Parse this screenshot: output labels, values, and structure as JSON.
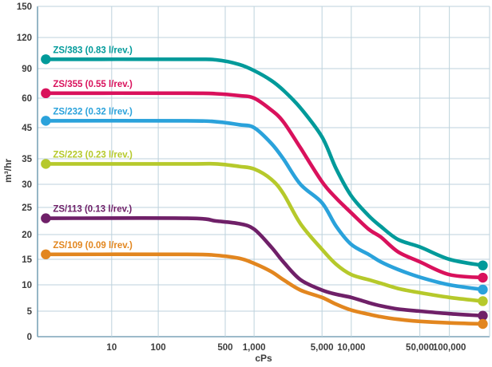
{
  "chart_data": {
    "type": "line",
    "title": "",
    "xlabel": "cPs",
    "ylabel": "m³/hr",
    "x_scale": "log-custom",
    "x_ticks": [
      {
        "value": 10,
        "label": "10"
      },
      {
        "value": 100,
        "label": "100"
      },
      {
        "value": 500,
        "label": "500"
      },
      {
        "value": 1000,
        "label": "1,000"
      },
      {
        "value": 5000,
        "label": "5,000"
      },
      {
        "value": 10000,
        "label": "10,000"
      },
      {
        "value": 50000,
        "label": "50,000"
      },
      {
        "value": 100000,
        "label": "100,000"
      }
    ],
    "y_ticks": [
      0,
      5,
      10,
      15,
      20,
      25,
      30,
      35,
      45,
      60,
      90,
      120,
      150
    ],
    "ylim": [
      0,
      150
    ],
    "x_range": [
      1,
      220000
    ],
    "grid": true,
    "legend_position": "inline-labels-above-curves",
    "series": [
      {
        "name": "ZS/383 (0.83 l/rev.)",
        "color": "#009a9a",
        "points": [
          [
            1.2,
            99
          ],
          [
            200,
            99
          ],
          [
            400,
            98.5
          ],
          [
            700,
            94
          ],
          [
            1000,
            88
          ],
          [
            1500,
            78
          ],
          [
            2000,
            68
          ],
          [
            3000,
            55
          ],
          [
            5000,
            42
          ],
          [
            7000,
            33
          ],
          [
            10000,
            27.5
          ],
          [
            15000,
            23.5
          ],
          [
            20000,
            21.5
          ],
          [
            30000,
            19
          ],
          [
            50000,
            17.5
          ],
          [
            100000,
            15
          ],
          [
            220000,
            13.8
          ]
        ]
      },
      {
        "name": "ZS/355 (0.55 l/rev.)",
        "color": "#d9115c",
        "points": [
          [
            1.2,
            65
          ],
          [
            200,
            65
          ],
          [
            400,
            64.5
          ],
          [
            700,
            62.5
          ],
          [
            1000,
            60
          ],
          [
            1500,
            54
          ],
          [
            2000,
            48
          ],
          [
            3000,
            38.5
          ],
          [
            5000,
            30.5
          ],
          [
            7000,
            27
          ],
          [
            10000,
            24
          ],
          [
            15000,
            21
          ],
          [
            20000,
            19.5
          ],
          [
            30000,
            16.5
          ],
          [
            50000,
            14.5
          ],
          [
            100000,
            12
          ],
          [
            220000,
            11.4
          ]
        ]
      },
      {
        "name": "ZS/232 (0.32 l/rev.)",
        "color": "#2aa2db",
        "points": [
          [
            1.2,
            48.5
          ],
          [
            200,
            48.5
          ],
          [
            400,
            48
          ],
          [
            700,
            46.5
          ],
          [
            1000,
            45
          ],
          [
            1500,
            40
          ],
          [
            2000,
            35
          ],
          [
            3000,
            30
          ],
          [
            5000,
            26
          ],
          [
            7000,
            21.5
          ],
          [
            10000,
            18
          ],
          [
            15000,
            16
          ],
          [
            20000,
            14.5
          ],
          [
            30000,
            13
          ],
          [
            50000,
            11.5
          ],
          [
            100000,
            10
          ],
          [
            220000,
            9.1
          ]
        ]
      },
      {
        "name": "ZS/223 (0.23 l/rev.)",
        "color": "#b6c92b",
        "points": [
          [
            1.2,
            34
          ],
          [
            200,
            34
          ],
          [
            400,
            34
          ],
          [
            700,
            33.5
          ],
          [
            1000,
            33
          ],
          [
            1500,
            31
          ],
          [
            2000,
            28
          ],
          [
            3000,
            22
          ],
          [
            5000,
            17
          ],
          [
            7000,
            14
          ],
          [
            10000,
            12
          ],
          [
            15000,
            11
          ],
          [
            20000,
            10.3
          ],
          [
            30000,
            9.3
          ],
          [
            50000,
            8.5
          ],
          [
            100000,
            7.6
          ],
          [
            220000,
            6.9
          ]
        ]
      },
      {
        "name": "ZS/113 (0.13 l/rev.)",
        "color": "#6f2068",
        "points": [
          [
            1.2,
            23
          ],
          [
            200,
            23
          ],
          [
            400,
            22.5
          ],
          [
            700,
            22
          ],
          [
            1000,
            21
          ],
          [
            1500,
            17.5
          ],
          [
            2000,
            14.5
          ],
          [
            3000,
            11
          ],
          [
            5000,
            9
          ],
          [
            7000,
            8.2
          ],
          [
            10000,
            7.6
          ],
          [
            15000,
            6.6
          ],
          [
            20000,
            6
          ],
          [
            30000,
            5.4
          ],
          [
            50000,
            5
          ],
          [
            100000,
            4.5
          ],
          [
            220000,
            4.1
          ]
        ]
      },
      {
        "name": "ZS/109 (0.09 l/rev.)",
        "color": "#e2861f",
        "points": [
          [
            1.2,
            16
          ],
          [
            200,
            16
          ],
          [
            400,
            15.8
          ],
          [
            700,
            15.2
          ],
          [
            1000,
            14.2
          ],
          [
            1500,
            12.6
          ],
          [
            2000,
            11
          ],
          [
            3000,
            9
          ],
          [
            5000,
            7.6
          ],
          [
            7000,
            6.3
          ],
          [
            10000,
            5.2
          ],
          [
            15000,
            4.4
          ],
          [
            20000,
            3.9
          ],
          [
            30000,
            3.4
          ],
          [
            50000,
            3
          ],
          [
            100000,
            2.7
          ],
          [
            220000,
            2.5
          ]
        ]
      }
    ],
    "style": {
      "grid_color": "#bdd2dc",
      "axis_color": "#7ba3b8",
      "tick_text_color": "#3c3c3c",
      "background": "#ffffff"
    }
  }
}
